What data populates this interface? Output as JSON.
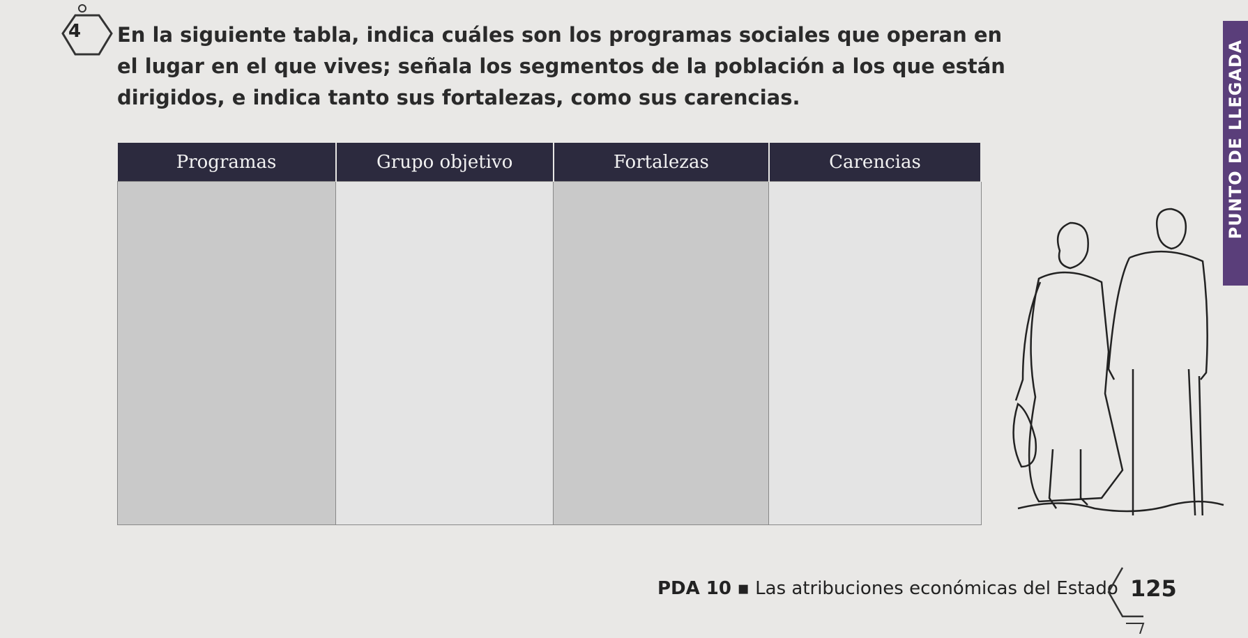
{
  "exercise": {
    "number": "4",
    "lines": [
      "En la siguiente tabla, indica cuáles son los programas sociales que operan en",
      "el lugar en el que vives; señala los segmentos de la población a los que están",
      "dirigidos, e indica tanto sus fortalezas, como sus carencias."
    ]
  },
  "table": {
    "headers": [
      "Programas",
      "Grupo objetivo",
      "Fortalezas",
      "Carencias"
    ]
  },
  "footer": {
    "unit": "PDA 10",
    "separator": "▪",
    "topic": "Las atribuciones económicas del Estado",
    "page": "125"
  },
  "side_tab": "PUNTO DE LLEGADA"
}
